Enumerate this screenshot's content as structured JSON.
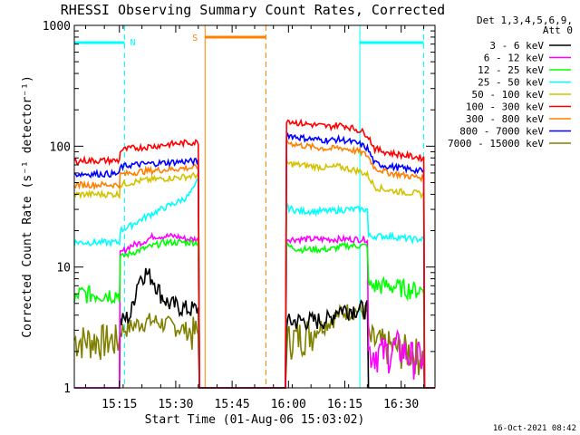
{
  "chart_data": {
    "type": "line",
    "title": "RHESSI Observing Summary Count Rates, Corrected",
    "xlabel": "Start Time (01-Aug-06 15:03:02)",
    "ylabel": "Corrected Count Rate (s⁻¹ detector⁻¹)",
    "y_scale": "log",
    "ylim": [
      1,
      1000
    ],
    "xlim_minutes": [
      0,
      96
    ],
    "x_ticks": [
      {
        "label": "15:15",
        "t": 12
      },
      {
        "label": "15:30",
        "t": 27
      },
      {
        "label": "15:45",
        "t": 42
      },
      {
        "label": "16:00",
        "t": 57
      },
      {
        "label": "16:15",
        "t": 72
      },
      {
        "label": "16:30",
        "t": 87
      }
    ],
    "y_ticks": [
      {
        "label": "1",
        "v": 1
      },
      {
        "label": "10",
        "v": 10
      },
      {
        "label": "100",
        "v": 100
      },
      {
        "label": "1000",
        "v": 1000
      }
    ],
    "legend_header": [
      "Det 1,3,4,5,6,9,",
      "Att 0"
    ],
    "series": [
      {
        "name": "3 - 6 keV",
        "color": "#000000",
        "points": [
          [
            0,
            1
          ],
          [
            0.5,
            1
          ],
          [
            12,
            1
          ],
          [
            12.2,
            3.5
          ],
          [
            15,
            4
          ],
          [
            17,
            8
          ],
          [
            19,
            9
          ],
          [
            21,
            8
          ],
          [
            23,
            6
          ],
          [
            25,
            5
          ],
          [
            30,
            4.5
          ],
          [
            33,
            4.5
          ],
          [
            33.3,
            1
          ],
          [
            56.2,
            1
          ],
          [
            56.5,
            3.5
          ],
          [
            60,
            3.6
          ],
          [
            64,
            3.6
          ],
          [
            68,
            3.7
          ],
          [
            70,
            4.5
          ],
          [
            72,
            4.5
          ],
          [
            75,
            4.5
          ],
          [
            78,
            4.5
          ],
          [
            78.3,
            1
          ],
          [
            96,
            1
          ]
        ]
      },
      {
        "name": "6 - 12 keV",
        "color": "#ff00ff",
        "points": [
          [
            0,
            1
          ],
          [
            12,
            1
          ],
          [
            12.2,
            13
          ],
          [
            15,
            15
          ],
          [
            18,
            16
          ],
          [
            21,
            18
          ],
          [
            24,
            18
          ],
          [
            27,
            18
          ],
          [
            30,
            17
          ],
          [
            33,
            17
          ],
          [
            33.3,
            1
          ],
          [
            56.2,
            1
          ],
          [
            56.5,
            17
          ],
          [
            62,
            17
          ],
          [
            68,
            17
          ],
          [
            74,
            17
          ],
          [
            78,
            17
          ],
          [
            78.3,
            2
          ],
          [
            84,
            2
          ],
          [
            86,
            2.2
          ],
          [
            90,
            1.8
          ],
          [
            93,
            1.8
          ],
          [
            93.2,
            1
          ],
          [
            96,
            1
          ]
        ]
      },
      {
        "name": "12 - 25 keV",
        "color": "#00ff00",
        "points": [
          [
            0,
            5
          ],
          [
            1,
            6
          ],
          [
            12,
            6
          ],
          [
            12.2,
            12
          ],
          [
            15,
            13
          ],
          [
            18,
            14
          ],
          [
            21,
            15
          ],
          [
            24,
            16
          ],
          [
            27,
            16
          ],
          [
            30,
            16
          ],
          [
            33,
            16
          ],
          [
            33.3,
            1
          ],
          [
            56.2,
            1
          ],
          [
            56.5,
            15
          ],
          [
            60,
            14
          ],
          [
            64,
            14
          ],
          [
            68,
            14
          ],
          [
            72,
            15
          ],
          [
            76,
            15
          ],
          [
            78,
            15
          ],
          [
            78.3,
            7
          ],
          [
            84,
            7
          ],
          [
            90,
            6.5
          ],
          [
            93,
            6.5
          ],
          [
            93.2,
            1
          ],
          [
            96,
            1
          ]
        ]
      },
      {
        "name": "25 - 50 keV",
        "color": "#00ffff",
        "points": [
          [
            0,
            16
          ],
          [
            1,
            16
          ],
          [
            12,
            16
          ],
          [
            12.2,
            20
          ],
          [
            15,
            22
          ],
          [
            18,
            25
          ],
          [
            21,
            28
          ],
          [
            24,
            31
          ],
          [
            27,
            34
          ],
          [
            30,
            38
          ],
          [
            32,
            45
          ],
          [
            33,
            55
          ],
          [
            33.3,
            1
          ],
          [
            56.2,
            1
          ],
          [
            56.5,
            31
          ],
          [
            60,
            29
          ],
          [
            64,
            29
          ],
          [
            68,
            29
          ],
          [
            72,
            30
          ],
          [
            76,
            30
          ],
          [
            78,
            30
          ],
          [
            78.3,
            18
          ],
          [
            84,
            18
          ],
          [
            90,
            17
          ],
          [
            93,
            17
          ],
          [
            93.2,
            1
          ],
          [
            96,
            1
          ]
        ]
      },
      {
        "name": "50 - 100 keV",
        "color": "#d4c200",
        "points": [
          [
            0,
            40
          ],
          [
            1,
            40
          ],
          [
            12,
            40
          ],
          [
            12.2,
            48
          ],
          [
            15,
            50
          ],
          [
            18,
            52
          ],
          [
            21,
            53
          ],
          [
            24,
            54
          ],
          [
            27,
            55
          ],
          [
            30,
            56
          ],
          [
            33,
            58
          ],
          [
            33.3,
            1
          ],
          [
            56.2,
            1
          ],
          [
            56.5,
            72
          ],
          [
            60,
            70
          ],
          [
            64,
            68
          ],
          [
            68,
            66
          ],
          [
            70,
            68
          ],
          [
            72,
            66
          ],
          [
            76,
            62
          ],
          [
            78,
            58
          ],
          [
            80,
            46
          ],
          [
            84,
            43
          ],
          [
            90,
            41
          ],
          [
            93,
            40
          ],
          [
            93.2,
            1
          ],
          [
            96,
            1
          ]
        ]
      },
      {
        "name": "100 - 300 keV",
        "color": "#ff0000",
        "points": [
          [
            0,
            75
          ],
          [
            1,
            76
          ],
          [
            12,
            76
          ],
          [
            12.2,
            92
          ],
          [
            15,
            96
          ],
          [
            18,
            98
          ],
          [
            21,
            100
          ],
          [
            24,
            103
          ],
          [
            27,
            105
          ],
          [
            30,
            107
          ],
          [
            33,
            108
          ],
          [
            33.3,
            1
          ],
          [
            56.2,
            1
          ],
          [
            56.5,
            165
          ],
          [
            60,
            155
          ],
          [
            64,
            150
          ],
          [
            68,
            145
          ],
          [
            70,
            150
          ],
          [
            72,
            148
          ],
          [
            76,
            135
          ],
          [
            78,
            125
          ],
          [
            80,
            95
          ],
          [
            84,
            88
          ],
          [
            90,
            82
          ],
          [
            93,
            80
          ],
          [
            93.2,
            1
          ],
          [
            96,
            1
          ]
        ]
      },
      {
        "name": "300 - 800 keV",
        "color": "#ff8000",
        "points": [
          [
            0,
            48
          ],
          [
            1,
            48
          ],
          [
            12,
            48
          ],
          [
            12.2,
            58
          ],
          [
            15,
            60
          ],
          [
            18,
            62
          ],
          [
            21,
            63
          ],
          [
            24,
            64
          ],
          [
            27,
            65
          ],
          [
            30,
            66
          ],
          [
            33,
            67
          ],
          [
            33.3,
            1
          ],
          [
            56.2,
            1
          ],
          [
            56.5,
            108
          ],
          [
            60,
            102
          ],
          [
            64,
            98
          ],
          [
            68,
            95
          ],
          [
            70,
            97
          ],
          [
            72,
            96
          ],
          [
            76,
            90
          ],
          [
            78,
            84
          ],
          [
            80,
            66
          ],
          [
            84,
            60
          ],
          [
            90,
            56
          ],
          [
            93,
            55
          ],
          [
            93.2,
            1
          ],
          [
            96,
            1
          ]
        ]
      },
      {
        "name": "800 - 7000 keV",
        "color": "#0000ff",
        "points": [
          [
            0,
            58
          ],
          [
            1,
            59
          ],
          [
            12,
            59
          ],
          [
            12.2,
            67
          ],
          [
            15,
            70
          ],
          [
            18,
            71
          ],
          [
            21,
            72
          ],
          [
            24,
            73
          ],
          [
            27,
            74
          ],
          [
            30,
            75
          ],
          [
            33,
            75
          ],
          [
            33.3,
            1
          ],
          [
            56.2,
            1
          ],
          [
            56.5,
            125
          ],
          [
            60,
            118
          ],
          [
            64,
            114
          ],
          [
            68,
            112
          ],
          [
            70,
            114
          ],
          [
            72,
            112
          ],
          [
            76,
            104
          ],
          [
            78,
            96
          ],
          [
            80,
            72
          ],
          [
            84,
            68
          ],
          [
            90,
            64
          ],
          [
            93,
            62
          ],
          [
            93.2,
            1
          ],
          [
            96,
            1
          ]
        ]
      },
      {
        "name": "7000 - 15000 keV",
        "color": "#808000",
        "points": [
          [
            0,
            2.5
          ],
          [
            1,
            2.5
          ],
          [
            12,
            2.5
          ],
          [
            12.2,
            3
          ],
          [
            15,
            3.2
          ],
          [
            18,
            3.5
          ],
          [
            21,
            3.6
          ],
          [
            24,
            3.4
          ],
          [
            27,
            3.2
          ],
          [
            30,
            3
          ],
          [
            33,
            2.8
          ],
          [
            33.3,
            1
          ],
          [
            56.2,
            1
          ],
          [
            56.5,
            2.5
          ],
          [
            60,
            2.7
          ],
          [
            64,
            3
          ],
          [
            68,
            3.6
          ],
          [
            70,
            4
          ],
          [
            72,
            4.3
          ],
          [
            75,
            4.4
          ],
          [
            78,
            4.2
          ],
          [
            78.3,
            2.5
          ],
          [
            84,
            2.2
          ],
          [
            90,
            2
          ],
          [
            93,
            1.8
          ],
          [
            93.2,
            1
          ],
          [
            96,
            1
          ]
        ]
      }
    ],
    "annotations": [
      {
        "label": "N",
        "color": "#00ffff"
      },
      {
        "label": "S",
        "color": "#ff8000"
      }
    ],
    "flag_intervals": [
      {
        "kind": "night",
        "color": "#00ffff",
        "t0": 0,
        "t1": 13.4,
        "solid_t": 0,
        "dashed_t": 13.4
      },
      {
        "kind": "night",
        "color": "#00ffff",
        "t0": 76,
        "t1": 93,
        "solid_t": 76,
        "dashed_t": 93
      },
      {
        "kind": "saa",
        "color": "#ff8000",
        "t0": 34.8,
        "t1": 51,
        "solid_t": 34.8,
        "dashed_t": 51
      }
    ]
  },
  "footer": {
    "timestamp": "16-Oct-2021 08:42"
  }
}
